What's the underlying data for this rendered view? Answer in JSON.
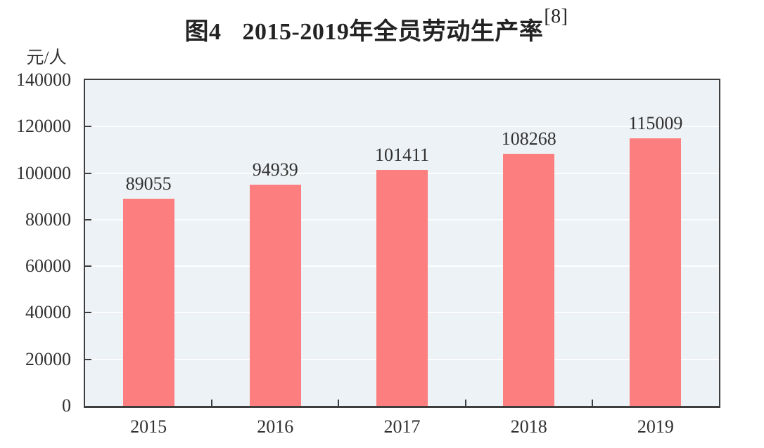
{
  "figure": {
    "title_prefix": "图4",
    "title_main": "2015-2019年全员劳动生产率",
    "title_superscript": "[8]",
    "unit_label": "元/人"
  },
  "chart_data": {
    "type": "bar",
    "title": "图4 2015-2019年全员劳动生产率[8]",
    "categories": [
      "2015",
      "2016",
      "2017",
      "2018",
      "2019"
    ],
    "values": [
      89055,
      94939,
      101411,
      108268,
      115009
    ],
    "data_labels": [
      "89055",
      "94939",
      "101411",
      "108268",
      "115009"
    ],
    "xlabel": "",
    "ylabel": "元/人",
    "ylim": [
      0,
      140000
    ],
    "ytick_interval": 20000,
    "ytick_labels": [
      "0",
      "20000",
      "40000",
      "60000",
      "80000",
      "100000",
      "120000",
      "140000"
    ],
    "grid": true,
    "legend_position": "none",
    "colors": {
      "bar": "#FC7E7E",
      "plot_background": "#EDF2F6",
      "gridline": "#FBFDFE",
      "frame": "#3E3E3E",
      "text": "#313131"
    }
  }
}
